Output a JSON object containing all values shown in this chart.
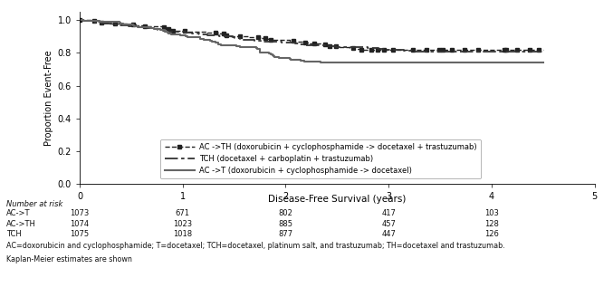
{
  "title": "",
  "xlabel": "Disease-Free Survival (years)",
  "ylabel": "Proportion Event-Free",
  "xlim": [
    0,
    5
  ],
  "ylim": [
    0.0,
    1.05
  ],
  "yticks": [
    0.0,
    0.2,
    0.4,
    0.6,
    0.8,
    1.0
  ],
  "xticks": [
    0,
    1,
    2,
    3,
    4,
    5
  ],
  "legend_labels": [
    "AC ->TH (doxorubicin + cyclophosphamide -> docetaxel + trastuzumab)",
    "TCH (docetaxel + carboplatin + trastuzumab)",
    "AC ->T (doxorubicin + cyclophosphamide -> docetaxel)"
  ],
  "number_at_risk_label": "Number at risk",
  "groups": [
    "AC->T",
    "AC->TH",
    "TCH"
  ],
  "risk_times": [
    0,
    1,
    2,
    3,
    4
  ],
  "risk_numbers": [
    [
      1073,
      671,
      802,
      417,
      103
    ],
    [
      1074,
      1023,
      885,
      457,
      128
    ],
    [
      1075,
      1018,
      877,
      447,
      126
    ]
  ],
  "footnote1": "AC=doxorubicin and cyclophosphamide; T=docetaxel; TCH=docetaxel, platinum salt, and trastuzumab; TH=docetaxel and trastuzumab.",
  "footnote2": "Kaplan-Meier estimates are shown"
}
